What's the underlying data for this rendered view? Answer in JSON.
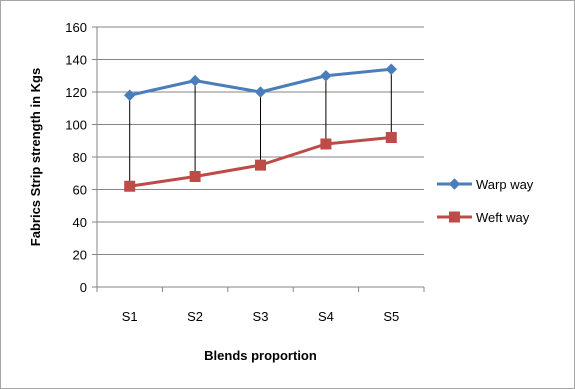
{
  "chart_data": {
    "type": "line",
    "title": "",
    "xlabel": "Blends proportion",
    "ylabel": "Fabrics Strip strength in Kgs",
    "categories": [
      "S1",
      "S2",
      "S3",
      "S4",
      "S5"
    ],
    "ylim": [
      0,
      160
    ],
    "yticks": [
      0,
      20,
      40,
      60,
      80,
      100,
      120,
      140,
      160
    ],
    "grid": true,
    "high_low_lines": true,
    "legend_position": "right",
    "series": [
      {
        "name": "Warp way",
        "values": [
          118,
          127,
          120,
          130,
          134
        ],
        "color": "#4a7ebb",
        "marker": "diamond"
      },
      {
        "name": "Weft way",
        "values": [
          62,
          68,
          75,
          88,
          92
        ],
        "color": "#be4b48",
        "marker": "square"
      }
    ]
  }
}
